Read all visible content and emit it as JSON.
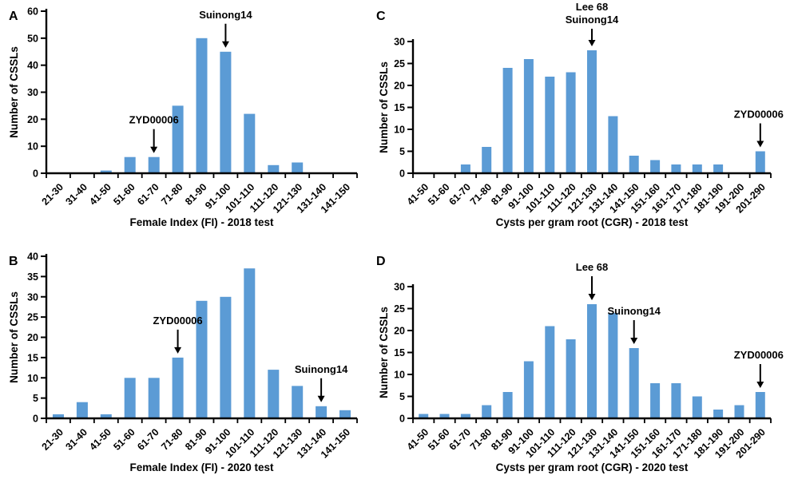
{
  "figure": {
    "background": "#ffffff",
    "bar_color": "#5b9bd5",
    "axis_color": "#000000",
    "text_color": "#000000"
  },
  "chart_data": [
    {
      "panel": "A",
      "type": "bar",
      "title": "",
      "ylabel": "Number of CSSLs",
      "xlabel": "Female Index (FI) - 2018 test",
      "ylim": [
        0,
        60
      ],
      "ytick_step": 10,
      "grid": false,
      "legend": null,
      "categories": [
        "21-30",
        "31-40",
        "41-50",
        "51-60",
        "61-70",
        "71-80",
        "81-90",
        "91-100",
        "101-110",
        "111-120",
        "121-130",
        "131-140",
        "141-150"
      ],
      "values": [
        0,
        0,
        1,
        6,
        6,
        25,
        50,
        45,
        22,
        3,
        4,
        0,
        0
      ],
      "annotations": [
        {
          "lines": [
            "ZYD00006"
          ],
          "category": "61-70"
        },
        {
          "lines": [
            "Suinong14"
          ],
          "category": "91-100"
        }
      ]
    },
    {
      "panel": "B",
      "type": "bar",
      "title": "",
      "ylabel": "Number of CSSLs",
      "xlabel": "Female Index (FI) - 2020 test",
      "ylim": [
        0,
        40
      ],
      "ytick_step": 5,
      "grid": false,
      "legend": null,
      "categories": [
        "21-30",
        "31-40",
        "41-50",
        "51-60",
        "61-70",
        "71-80",
        "81-90",
        "91-100",
        "101-110",
        "111-120",
        "121-130",
        "131-140",
        "141-150"
      ],
      "values": [
        1,
        4,
        1,
        10,
        10,
        15,
        29,
        30,
        37,
        12,
        8,
        3,
        2
      ],
      "annotations": [
        {
          "lines": [
            "ZYD00006"
          ],
          "category": "71-80"
        },
        {
          "lines": [
            "Suinong14"
          ],
          "category": "131-140"
        }
      ]
    },
    {
      "panel": "C",
      "type": "bar",
      "title": "",
      "ylabel": "Number of CSSLs",
      "xlabel": "Cysts  per gram root (CGR)  - 2018 test",
      "ylim": [
        0,
        30
      ],
      "ytick_step": 5,
      "grid": false,
      "legend": null,
      "categories": [
        "41-50",
        "51-60",
        "61-70",
        "71-80",
        "81-90",
        "91-100",
        "101-110",
        "111-120",
        "121-130",
        "131-140",
        "141-150",
        "151-160",
        "161-170",
        "171-180",
        "181-190",
        "191-200",
        "201-290"
      ],
      "values": [
        0,
        0,
        2,
        6,
        24,
        26,
        22,
        23,
        28,
        13,
        4,
        3,
        2,
        2,
        2,
        0,
        5
      ],
      "annotations": [
        {
          "lines": [
            "Lee 68",
            "Suinong14"
          ],
          "category": "121-130"
        },
        {
          "lines": [
            "ZYD00006"
          ],
          "category": "201-290"
        }
      ]
    },
    {
      "panel": "D",
      "type": "bar",
      "title": "",
      "ylabel": "Number of CSSLs",
      "xlabel": "Cysts  per gram root (CGR)  - 2020 test",
      "ylim": [
        0,
        30
      ],
      "ytick_step": 5,
      "grid": false,
      "legend": null,
      "categories": [
        "41-50",
        "51-60",
        "61-70",
        "71-80",
        "81-90",
        "91-100",
        "101-110",
        "111-120",
        "121-130",
        "131-140",
        "141-150",
        "151-160",
        "161-170",
        "171-180",
        "181-190",
        "191-200",
        "201-290"
      ],
      "values": [
        1,
        1,
        1,
        3,
        6,
        13,
        21,
        18,
        26,
        24,
        16,
        8,
        8,
        5,
        2,
        3,
        6
      ],
      "annotations": [
        {
          "lines": [
            "Lee 68"
          ],
          "category": "121-130"
        },
        {
          "lines": [
            "Suinong14"
          ],
          "category": "141-150"
        },
        {
          "lines": [
            "ZYD00006"
          ],
          "category": "201-290"
        }
      ]
    }
  ]
}
